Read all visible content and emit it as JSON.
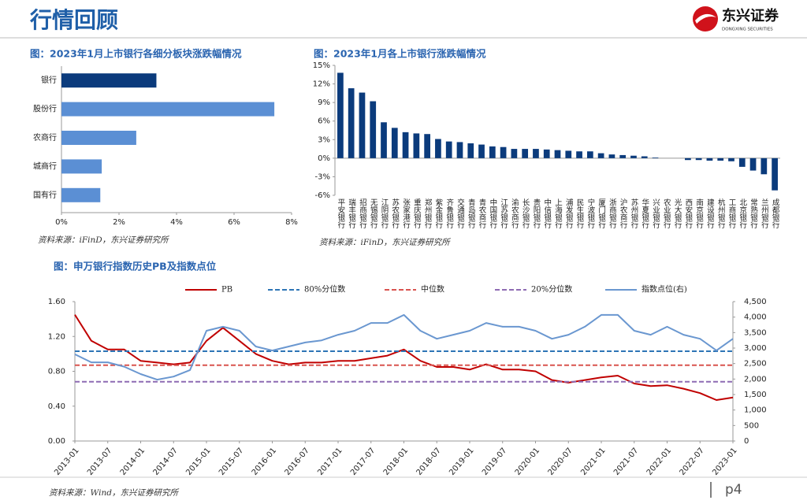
{
  "header": {
    "title": "行情回顾",
    "logo_name": "东兴证券",
    "logo_subtitle": "DONGXING SECURITIES"
  },
  "footer": {
    "page": "p4"
  },
  "chart_data": [
    {
      "type": "bar",
      "horizontal": true,
      "title": "图：2023年1月上市银行各细分板块涨跌幅情况",
      "source": "资料来源：iFinD，东兴证券研究所",
      "categories": [
        "银行",
        "股份行",
        "农商行",
        "城商行",
        "国有行"
      ],
      "values": [
        3.3,
        7.4,
        2.6,
        1.4,
        1.35
      ],
      "colors": [
        "#0b3b7c",
        "#5b8fd4",
        "#5b8fd4",
        "#5b8fd4",
        "#5b8fd4"
      ],
      "xlim": [
        0,
        8
      ],
      "xticks": [
        {
          "value": 0,
          "label": "0%"
        },
        {
          "value": 2,
          "label": "2%"
        },
        {
          "value": 4,
          "label": "4%"
        },
        {
          "value": 6,
          "label": "6%"
        },
        {
          "value": 8,
          "label": "8%"
        }
      ]
    },
    {
      "type": "bar",
      "title": "图：2023年1月各上市银行涨跌幅情况",
      "source": "资料来源：iFinD，东兴证券研究所",
      "categories": [
        "平安银行",
        "瑞丰银行",
        "招商银行",
        "无锡银行",
        "江阴银行",
        "苏农银行",
        "张家港行",
        "重庆银行",
        "郑州银行",
        "紫金银行",
        "齐鲁银行",
        "交通银行",
        "青岛银行",
        "青农商行",
        "中国银行",
        "江苏银行",
        "渝农商行",
        "长沙银行",
        "贵阳银行",
        "中信银行",
        "上海银行",
        "浦发银行",
        "民生银行",
        "宁波银行",
        "厦门银行",
        "浙商银行",
        "沪农商行",
        "苏州银行",
        "华夏银行",
        "兴业银行",
        "农业银行",
        "光大银行",
        "西安银行",
        "南京银行",
        "建设银行",
        "杭州银行",
        "工商银行",
        "北京银行",
        "常熟银行",
        "兰州银行",
        "成都银行"
      ],
      "values": [
        13.8,
        11.3,
        10.6,
        9.2,
        5.8,
        4.9,
        4.2,
        4.0,
        3.9,
        3.1,
        2.7,
        2.6,
        2.4,
        2.2,
        1.9,
        1.8,
        1.5,
        1.5,
        1.5,
        1.4,
        1.3,
        1.2,
        1.1,
        1.1,
        0.8,
        0.6,
        0.5,
        0.4,
        0.3,
        0.1,
        0,
        0,
        -0.3,
        -0.3,
        -0.4,
        -0.4,
        -0.5,
        -1.4,
        -2.0,
        -2.6,
        -5.2
      ],
      "color": "#0b3b7c",
      "ylim": [
        -6,
        15
      ],
      "yticks": [
        {
          "value": -6,
          "label": "-6%"
        },
        {
          "value": -3,
          "label": "-3%"
        },
        {
          "value": 0,
          "label": "0%"
        },
        {
          "value": 3,
          "label": "3%"
        },
        {
          "value": 6,
          "label": "6%"
        },
        {
          "value": 9,
          "label": "9%"
        },
        {
          "value": 12,
          "label": "12%"
        },
        {
          "value": 15,
          "label": "15%"
        }
      ]
    },
    {
      "type": "line",
      "title": "图：申万银行指数历史PB及指数点位",
      "source": "资料来源：Wind，东兴证券研究所",
      "x": [
        "2013-01",
        "2013-04",
        "2013-07",
        "2013-10",
        "2014-01",
        "2014-04",
        "2014-07",
        "2014-10",
        "2015-01",
        "2015-04",
        "2015-07",
        "2015-10",
        "2016-01",
        "2016-04",
        "2016-07",
        "2016-10",
        "2017-01",
        "2017-04",
        "2017-07",
        "2017-10",
        "2018-01",
        "2018-04",
        "2018-07",
        "2018-10",
        "2019-01",
        "2019-04",
        "2019-07",
        "2019-10",
        "2020-01",
        "2020-04",
        "2020-07",
        "2020-10",
        "2021-01",
        "2021-04",
        "2021-07",
        "2021-10",
        "2022-01",
        "2022-04",
        "2022-07",
        "2022-10",
        "2023-01"
      ],
      "xticks": [
        "2013-01",
        "2013-07",
        "2014-01",
        "2014-07",
        "2015-01",
        "2015-07",
        "2016-01",
        "2016-07",
        "2017-01",
        "2017-07",
        "2018-01",
        "2018-07",
        "2019-01",
        "2019-07",
        "2020-01",
        "2020-07",
        "2021-01",
        "2021-07",
        "2022-01",
        "2022-07",
        "2023-01"
      ],
      "series": [
        {
          "name": "PB",
          "color": "#c00000",
          "values": [
            1.45,
            1.15,
            1.05,
            1.05,
            0.92,
            0.9,
            0.88,
            0.9,
            1.15,
            1.3,
            1.15,
            1.0,
            0.92,
            0.88,
            0.9,
            0.9,
            0.92,
            0.92,
            0.95,
            0.98,
            1.05,
            0.92,
            0.85,
            0.85,
            0.82,
            0.88,
            0.82,
            0.82,
            0.8,
            0.7,
            0.67,
            0.7,
            0.73,
            0.75,
            0.66,
            0.63,
            0.64,
            0.6,
            0.55,
            0.47,
            0.5
          ]
        },
        {
          "name": "80%分位数",
          "color": "#2e75b6",
          "dashed": true,
          "value": 1.03
        },
        {
          "name": "中位数",
          "color": "#d9534f",
          "dashed": true,
          "value": 0.87
        },
        {
          "name": "20%分位数",
          "color": "#8e6bb3",
          "dashed": true,
          "value": 0.68
        },
        {
          "name": "指数点位(右)",
          "color": "#6a97d0",
          "axis": "y2",
          "values": [
            2800,
            2540,
            2540,
            2400,
            2160,
            1980,
            2080,
            2290,
            3560,
            3690,
            3560,
            3050,
            2920,
            3050,
            3180,
            3250,
            3430,
            3560,
            3810,
            3810,
            4070,
            3560,
            3300,
            3430,
            3560,
            3810,
            3690,
            3690,
            3560,
            3300,
            3430,
            3690,
            4070,
            4070,
            3560,
            3430,
            3690,
            3430,
            3300,
            2920,
            3300
          ]
        }
      ],
      "ylim": [
        0,
        1.6
      ],
      "yticks": [
        {
          "value": 0,
          "label": "0.00"
        },
        {
          "value": 0.4,
          "label": "0.40"
        },
        {
          "value": 0.8,
          "label": "0.80"
        },
        {
          "value": 1.2,
          "label": "1.20"
        },
        {
          "value": 1.6,
          "label": "1.60"
        }
      ],
      "y2lim": [
        0,
        4500
      ],
      "y2ticks": [
        0,
        500,
        {
          "value": 1000,
          "label": "1,000"
        },
        {
          "value": 1500,
          "label": "1,500"
        },
        {
          "value": 2000,
          "label": "2,000"
        },
        {
          "value": 2500,
          "label": "2,500"
        },
        {
          "value": 3000,
          "label": "3,000"
        },
        {
          "value": 3500,
          "label": "3,500"
        },
        {
          "value": 4000,
          "label": "4,000"
        },
        {
          "value": 4500,
          "label": "4,500"
        }
      ]
    }
  ]
}
